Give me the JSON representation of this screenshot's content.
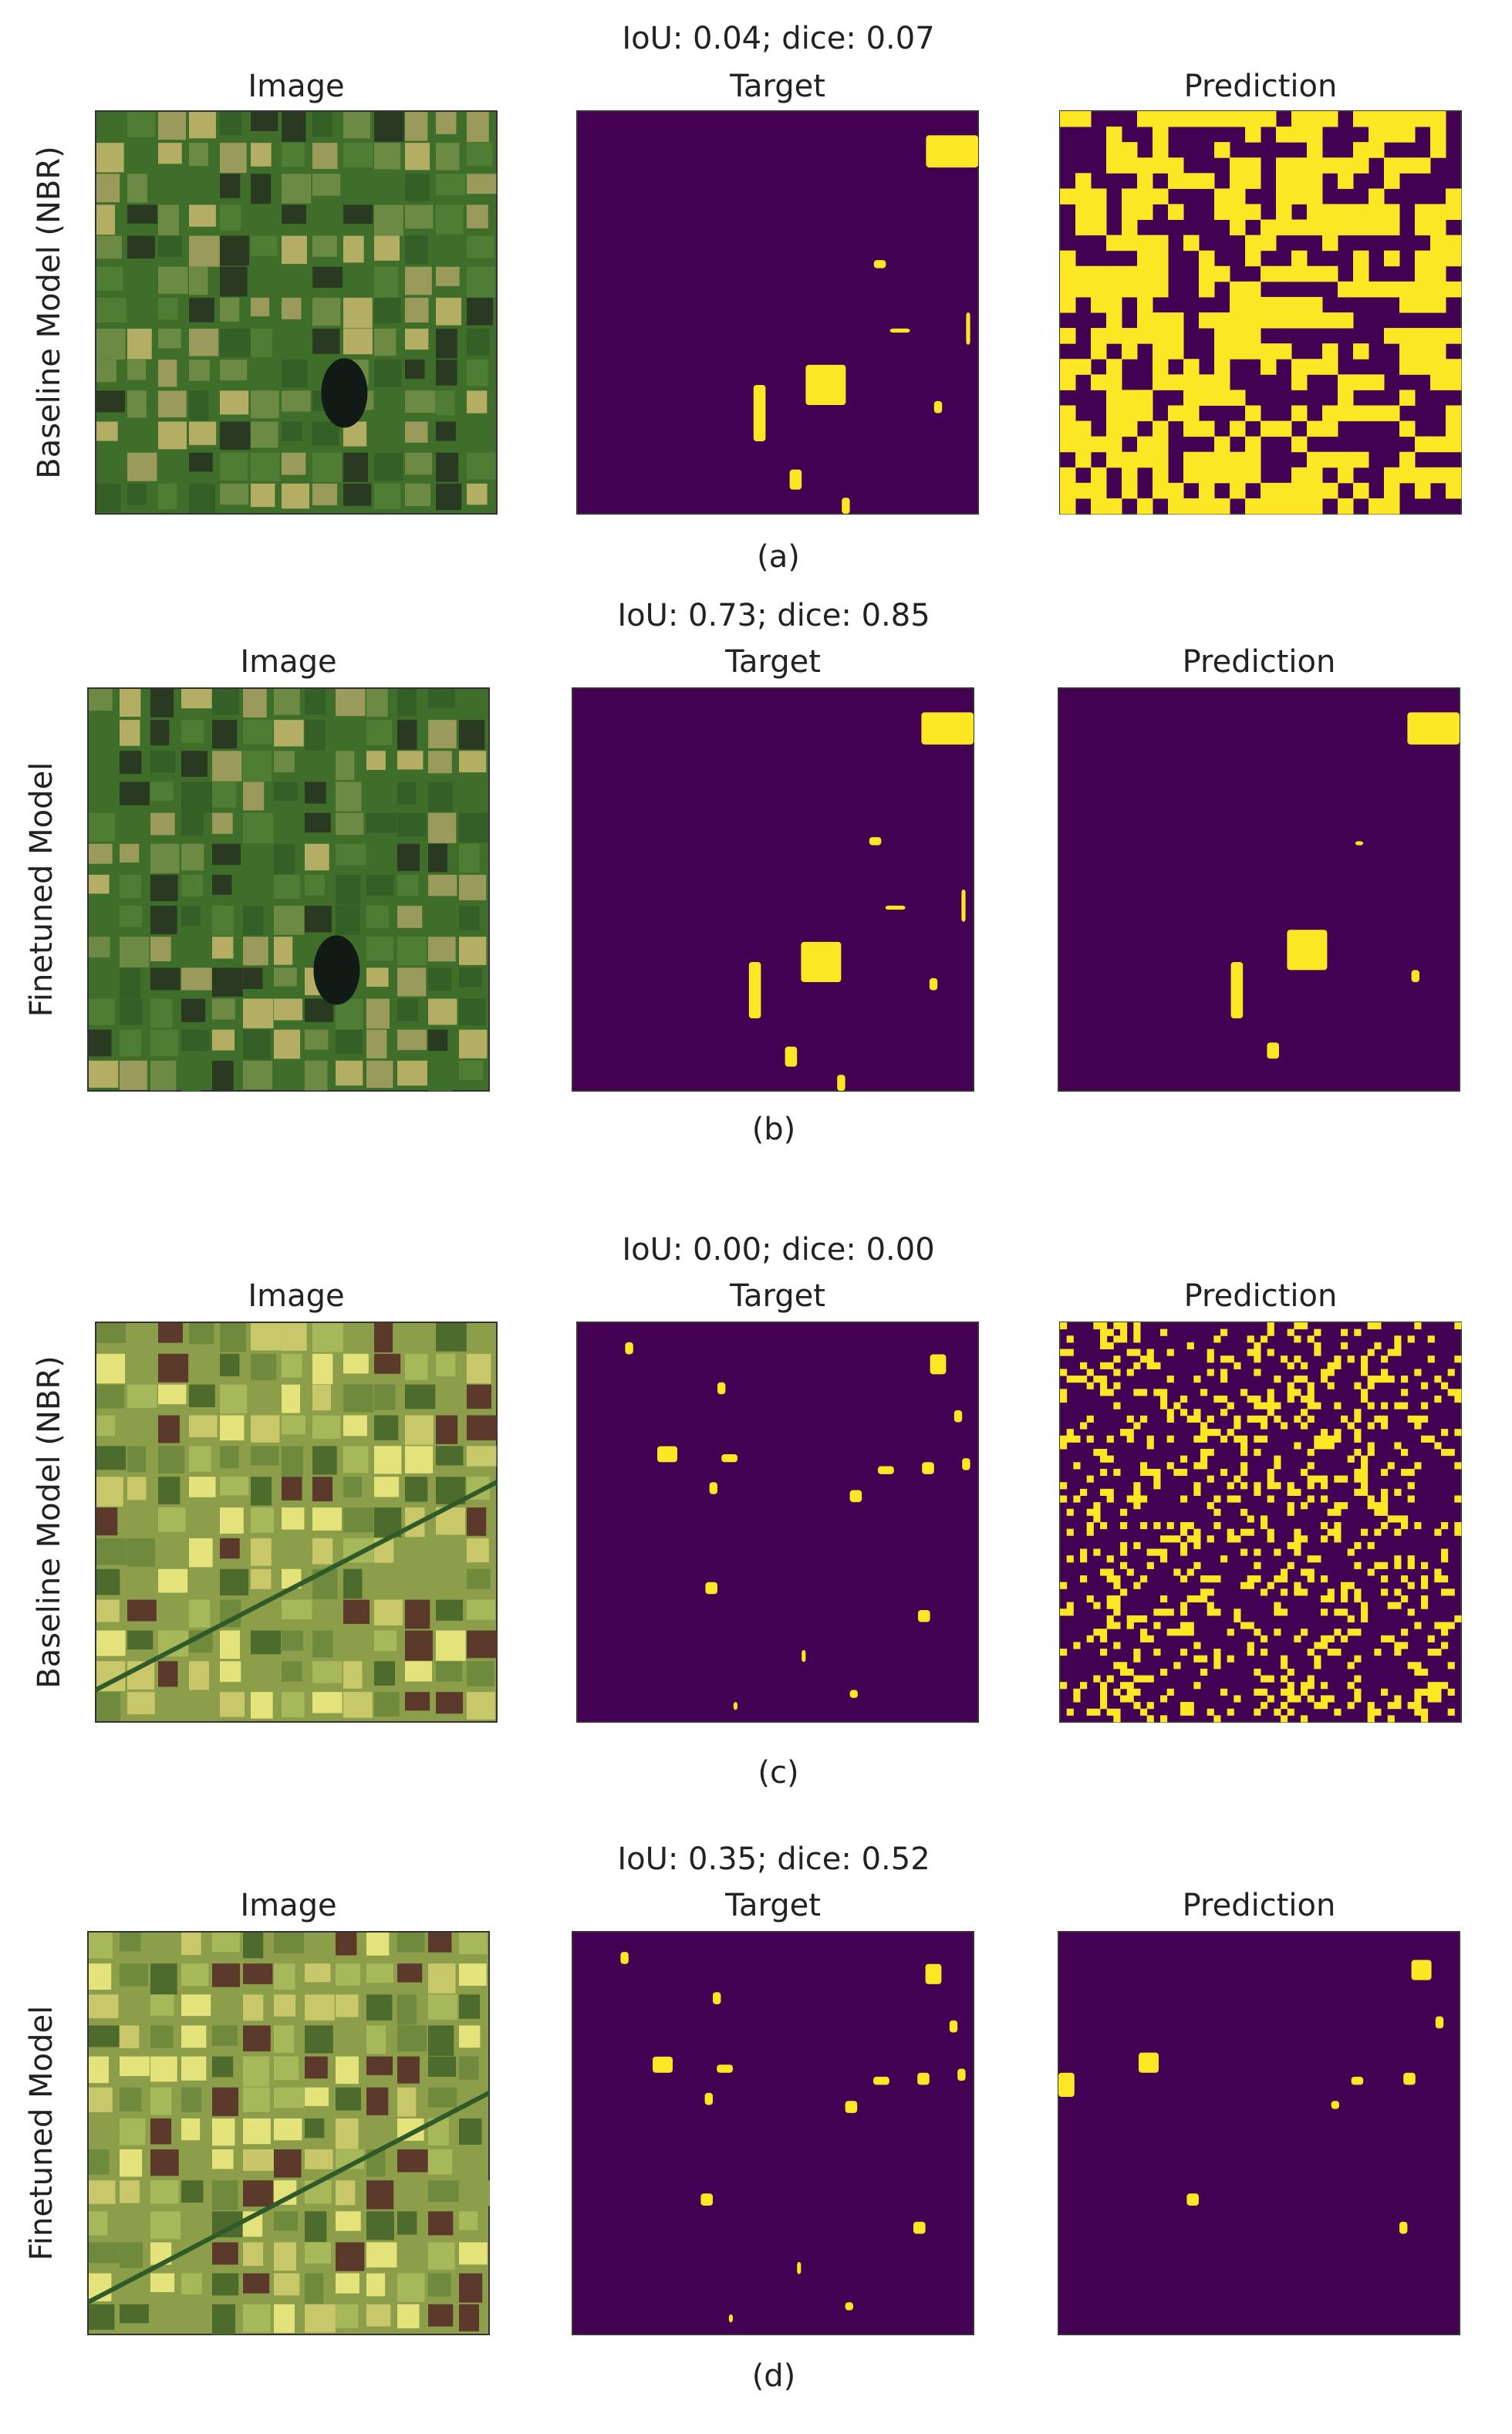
{
  "panels": [
    {
      "title": "IoU: 0.04; dice: 0.07",
      "row_label": "Baseline Model (NBR)",
      "columns": [
        "Image",
        "Target",
        "Prediction"
      ],
      "caption": "(a)"
    },
    {
      "title": "IoU: 0.73; dice: 0.85",
      "row_label": "Finetuned Model",
      "columns": [
        "Image",
        "Target",
        "Prediction"
      ],
      "caption": "(b)"
    },
    {
      "title": "IoU: 0.00; dice: 0.00",
      "row_label": "Baseline Model (NBR)",
      "columns": [
        "Image",
        "Target",
        "Prediction"
      ],
      "caption": "(c)"
    },
    {
      "title": "IoU: 0.35; dice: 0.52",
      "row_label": "Finetuned Model",
      "columns": [
        "Image",
        "Target",
        "Prediction"
      ],
      "caption": "(d)"
    }
  ]
}
